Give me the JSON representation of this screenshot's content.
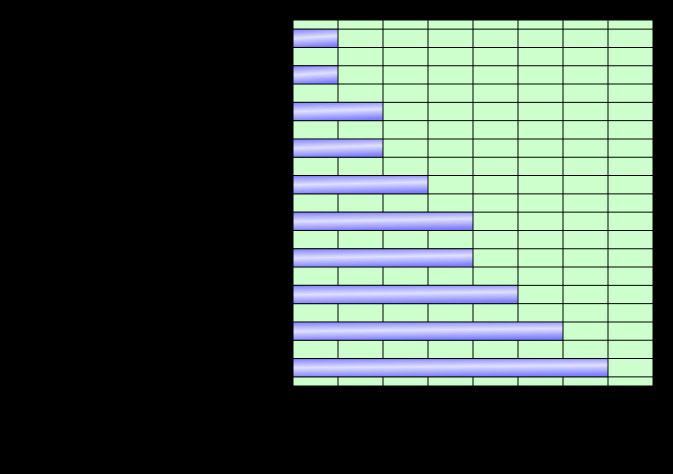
{
  "chart_data": {
    "type": "hbar",
    "categories": [
      null,
      null,
      null,
      null,
      null,
      null,
      null,
      null,
      null,
      null
    ],
    "values": [
      1,
      1,
      2,
      2,
      3,
      4,
      4,
      5,
      6,
      7
    ],
    "color": "#9999ff",
    "xlim": [
      0,
      8
    ],
    "xticks": [
      0,
      1,
      2,
      3,
      4,
      5,
      6,
      7,
      8
    ],
    "grid": true
  }
}
